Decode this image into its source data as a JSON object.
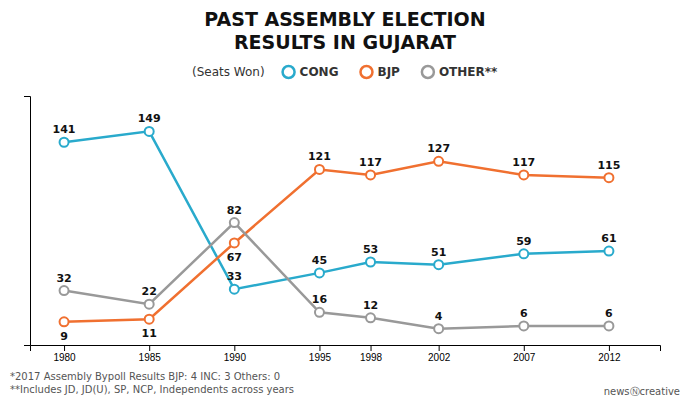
{
  "chart_data": {
    "type": "line",
    "title": [
      "PAST ASSEMBLY ELECTION",
      "RESULTS IN GUJARAT"
    ],
    "subtitle": "(Seats Won)",
    "x": [
      1980,
      1985,
      1990,
      1995,
      1998,
      2002,
      2007,
      2012
    ],
    "series": [
      {
        "name": "CONG",
        "color": "#29AACC",
        "values": [
          141,
          149,
          33,
          45,
          53,
          51,
          59,
          61
        ]
      },
      {
        "name": "BJP",
        "color": "#F07030",
        "values": [
          9,
          11,
          67,
          121,
          117,
          127,
          117,
          115
        ]
      },
      {
        "name": "OTHER**",
        "color": "#999999",
        "values": [
          32,
          22,
          82,
          16,
          12,
          4,
          6,
          6
        ]
      }
    ],
    "xlim": [
      1978,
      2015
    ],
    "xticks": [
      1980,
      1985,
      1990,
      1995,
      1998,
      2002,
      2007,
      2012
    ],
    "ylim": [
      -8,
      175
    ],
    "tick_labels": "x",
    "grid": false,
    "legend": "top",
    "data_labels": true,
    "marker": "circle",
    "annotations": [
      "*2017 Assembly Bypoll Results BJP: 4 INC: 3 Others: 0",
      "**Includes JD, JD(U), SP, NCP, Independents across years",
      "newsⓃcreative"
    ]
  }
}
